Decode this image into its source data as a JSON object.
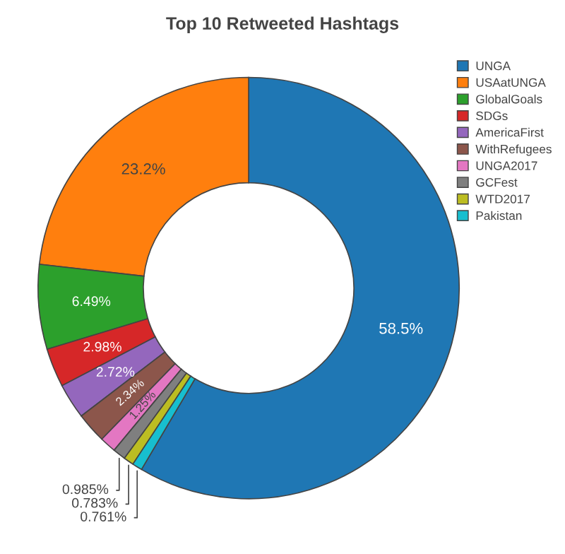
{
  "chart_data": {
    "type": "donut",
    "title": "Top 10 Retweeted Hashtags",
    "categories": [
      "UNGA",
      "USAatUNGA",
      "GlobalGoals",
      "SDGs",
      "AmericaFirst",
      "WithRefugees",
      "UNGA2017",
      "GCFest",
      "WTD2017",
      "Pakistan"
    ],
    "values": [
      58.5,
      23.2,
      6.49,
      2.98,
      2.72,
      2.34,
      1.25,
      0.985,
      0.783,
      0.761
    ],
    "value_labels": [
      "58.5%",
      "23.2%",
      "6.49%",
      "2.98%",
      "2.72%",
      "2.34%",
      "1.25%",
      "0.985%",
      "0.783%",
      "0.761%"
    ],
    "colors": [
      "#1f77b4",
      "#ff7f0e",
      "#2ca02c",
      "#d62728",
      "#9467bd",
      "#8c564b",
      "#e377c2",
      "#7f7f7f",
      "#bcbd22",
      "#17becf"
    ],
    "legend": "top right"
  }
}
